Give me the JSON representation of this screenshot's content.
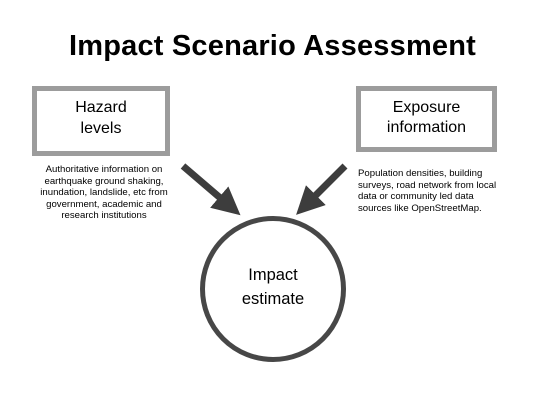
{
  "title": "Impact Scenario Assessment",
  "hazard": {
    "label_lines": [
      "Hazard",
      "levels"
    ],
    "description_lines": [
      "Authoritative information on",
      "earthquake ground shaking,",
      "inundation, landslide, etc from",
      "government, academic and",
      "research institutions"
    ]
  },
  "exposure": {
    "label_lines": [
      "Exposure",
      "information"
    ],
    "description_lines": [
      "Population densities, building",
      "surveys, road network from local",
      "data or community led data",
      "sources like OpenStreetMap."
    ]
  },
  "impact": {
    "label_lines": [
      "Impact",
      "estimate"
    ]
  },
  "colors": {
    "box_border": "#9c9c9c",
    "circle_border": "#474747",
    "arrow": "#3d3d3d",
    "text": "#000000"
  }
}
